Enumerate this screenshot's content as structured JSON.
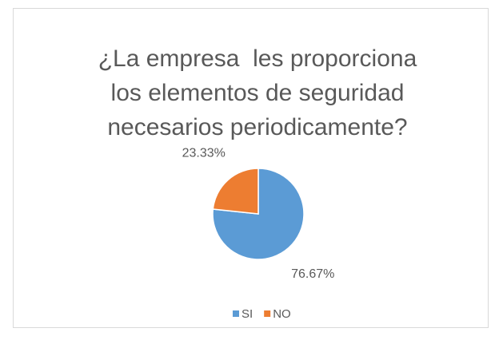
{
  "chart_data": {
    "type": "pie",
    "title": "¿La empresa  les proporciona\nlos elementos de seguridad\nnecesarios periodicamente?",
    "categories": [
      "SI",
      "NO"
    ],
    "values": [
      76.67,
      23.33
    ],
    "value_labels": [
      "76.67%",
      "23.33%"
    ],
    "colors": [
      "#5b9bd5",
      "#ed7d31"
    ],
    "legend": "bottom"
  }
}
